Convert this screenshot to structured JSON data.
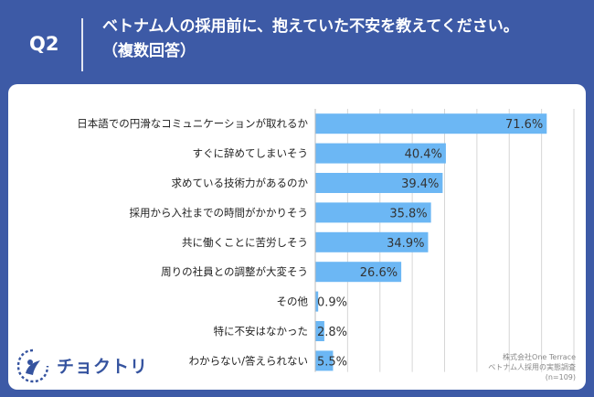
{
  "header": {
    "question_label": "Q2",
    "title_line1": "ベトナム人の採用前に、抱えていた不安を教えてください。",
    "title_line2": "（複数回答）"
  },
  "chart_data": {
    "type": "bar",
    "orientation": "horizontal",
    "categories": [
      "日本語での円滑なコミュニケーションが取れるか",
      "すぐに辞めてしまいそう",
      "求めている技術力があるのか",
      "採用から入社までの時間がかかりそう",
      "共に働くことに苦労しそう",
      "周りの社員との調整が大変そう",
      "その他",
      "特に不安はなかった",
      "わからない/答えられない"
    ],
    "values": [
      71.6,
      40.4,
      39.4,
      35.8,
      34.9,
      26.6,
      0.9,
      2.8,
      5.5
    ],
    "value_labels": [
      "71.6%",
      "40.4%",
      "39.4%",
      "35.8%",
      "34.9%",
      "26.6%",
      "0.9%",
      "2.8%",
      "5.5%"
    ],
    "xlim": [
      0,
      80
    ],
    "grid": true,
    "bar_color": "#6cb7f4"
  },
  "logo": {
    "text": "チョクトリ"
  },
  "source": {
    "line1": "株式会社One Terrace",
    "line2": "ベトナム人採用の実態調査",
    "line3": "(n=109)"
  },
  "colors": {
    "background": "#3d5aa6",
    "panel": "#ffffff",
    "bar": "#6cb7f4",
    "grid": "#d6d6d6"
  }
}
